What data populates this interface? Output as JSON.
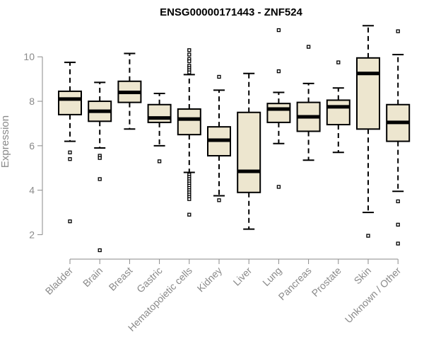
{
  "chart_data": {
    "type": "boxplot",
    "title": "ENSG00000171443 - ZNF524",
    "xlabel": "",
    "ylabel": "Expression",
    "ylim": [
      0.9,
      11.6
    ],
    "yticks": [
      2,
      4,
      6,
      8,
      10
    ],
    "grid": false,
    "categories": [
      "Bladder",
      "Brain",
      "Breast",
      "Gastric",
      "Hematopoietic cells",
      "Kidney",
      "Liver",
      "Lung",
      "Pancreas",
      "Prostate",
      "Skin",
      "Unknown / Other"
    ],
    "series": [
      {
        "name": "Bladder",
        "whisker_low": 6.2,
        "q1": 7.4,
        "median": 8.1,
        "q3": 8.45,
        "whisker_high": 9.75,
        "outliers": [
          5.7,
          5.4,
          2.6
        ]
      },
      {
        "name": "Brain",
        "whisker_low": 5.9,
        "q1": 7.1,
        "median": 7.55,
        "q3": 8.0,
        "whisker_high": 8.85,
        "outliers": [
          5.55,
          5.45,
          4.5,
          1.3
        ]
      },
      {
        "name": "Breast",
        "whisker_low": 6.75,
        "q1": 7.95,
        "median": 8.4,
        "q3": 8.9,
        "whisker_high": 10.15,
        "outliers": []
      },
      {
        "name": "Gastric",
        "whisker_low": 6.0,
        "q1": 7.05,
        "median": 7.25,
        "q3": 7.85,
        "whisker_high": 8.35,
        "outliers": [
          5.3
        ]
      },
      {
        "name": "Hematopoietic cells",
        "whisker_low": 4.8,
        "q1": 6.5,
        "median": 7.2,
        "q3": 7.65,
        "whisker_high": 9.2,
        "outliers": [
          10.3,
          10.1,
          9.9,
          9.8,
          9.6,
          9.5,
          9.4,
          9.3,
          4.7,
          4.6,
          4.5,
          4.4,
          4.3,
          4.2,
          4.1,
          4.0,
          3.9,
          3.8,
          3.7,
          3.6,
          2.9
        ]
      },
      {
        "name": "Kidney",
        "whisker_low": 3.75,
        "q1": 5.55,
        "median": 6.25,
        "q3": 6.85,
        "whisker_high": 8.5,
        "outliers": [
          9.1,
          3.55
        ]
      },
      {
        "name": "Liver",
        "whisker_low": 2.25,
        "q1": 3.9,
        "median": 4.85,
        "q3": 7.5,
        "whisker_high": 9.25,
        "outliers": []
      },
      {
        "name": "Lung",
        "whisker_low": 6.1,
        "q1": 7.05,
        "median": 7.65,
        "q3": 7.9,
        "whisker_high": 8.4,
        "outliers": [
          11.2,
          9.35,
          4.15
        ]
      },
      {
        "name": "Pancreas",
        "whisker_low": 5.35,
        "q1": 6.65,
        "median": 7.3,
        "q3": 7.95,
        "whisker_high": 8.8,
        "outliers": [
          10.45
        ]
      },
      {
        "name": "Prostate",
        "whisker_low": 5.7,
        "q1": 6.95,
        "median": 7.75,
        "q3": 8.05,
        "whisker_high": 8.6,
        "outliers": [
          9.75
        ]
      },
      {
        "name": "Skin",
        "whisker_low": 3.0,
        "q1": 6.75,
        "median": 9.25,
        "q3": 9.95,
        "whisker_high": 11.4,
        "outliers": [
          1.95
        ]
      },
      {
        "name": "Unknown / Other",
        "whisker_low": 3.95,
        "q1": 6.2,
        "median": 7.05,
        "q3": 7.85,
        "whisker_high": 10.1,
        "outliers": [
          11.15,
          3.5,
          2.45,
          1.6
        ]
      }
    ]
  }
}
